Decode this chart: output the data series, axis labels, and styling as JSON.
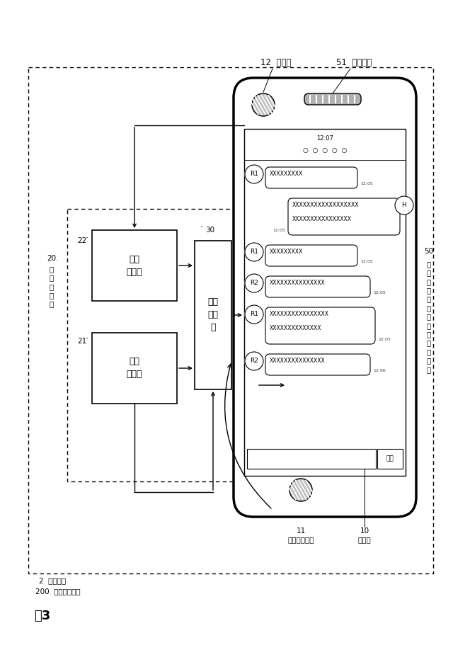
{
  "title": "図3",
  "bg_color": "#ffffff",
  "line_color": "#000000",
  "box_dousa": "動作\n認識部",
  "box_onsei": "音声\n認識部",
  "box_hatsuwa": "発話\n決定\n部",
  "label_20": "20",
  "label_20b": "行\n動\n認\n識\n部",
  "label_22": "22",
  "label_21": "21",
  "label_30": "30",
  "label_50": "50",
  "label_50b": "提\n示\n部\n（\n液\n晶\nデ\nィ\nス\nプ\nレ\nイ\n）",
  "label_12": "12  カメラ",
  "label_51": "51  スピーカ",
  "label_11": "11\nマイクロホン",
  "label_10": "10\n入力部",
  "label_2": "2  対話装置",
  "label_200": "200  対話システム",
  "time_label": "12:07",
  "send_btn": "送信",
  "msg1": "XXXXXXXXX",
  "msg2a": "XXXXXXXXXXXXXXXXXX",
  "msg2b": "XXXXXXXXXXXXXXXX",
  "msg3": "XXXXXXXXX",
  "msg4": "XXXXXXXXXXXXXXX",
  "msg5a": "XXXXXXXXXXXXXXXX",
  "msg5b": "XXXXXXXXXXXXXX",
  "msg6": "XXXXXXXXXXXXXXX",
  "time1": "12:05",
  "time2": "12:05",
  "time3": "12:05",
  "time4": "12:05",
  "time5": "12:05",
  "time6": "12:06"
}
